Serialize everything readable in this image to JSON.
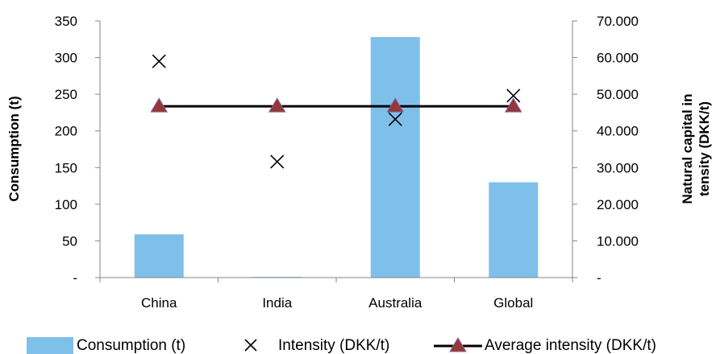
{
  "chart_data": {
    "type": "bar",
    "categories": [
      "China",
      "India",
      "Australia",
      "Global"
    ],
    "series": [
      {
        "name": "Consumption (t)",
        "type": "bar",
        "axis": "left",
        "color": "#7FC0EA",
        "values": [
          59,
          1,
          328,
          130
        ]
      },
      {
        "name": "Intensity (DKK/t)",
        "type": "scatter",
        "axis": "right",
        "marker": "x",
        "color": "#000000",
        "values": [
          59000,
          31600,
          43200,
          49600
        ]
      },
      {
        "name": "Average intensity (DKK/t)",
        "type": "line",
        "axis": "right",
        "marker": "triangle",
        "color": "#000000",
        "marker_color": "#953735",
        "values": [
          46700,
          46700,
          46700,
          46700
        ]
      }
    ],
    "left_axis": {
      "label": "Consumption (t)",
      "min": 0,
      "max": 350,
      "ticks": [
        0,
        50,
        100,
        150,
        200,
        250,
        300,
        350
      ],
      "tick_labels": [
        "-",
        "50",
        "100",
        "150",
        "200",
        "250",
        "300",
        "350"
      ]
    },
    "right_axis": {
      "label_lines": [
        "Natural capital in",
        "tensity (DKK/t)"
      ],
      "min": 0,
      "max": 70000,
      "ticks": [
        0,
        10000,
        20000,
        30000,
        40000,
        50000,
        60000,
        70000
      ],
      "tick_labels": [
        "-",
        "10.000",
        "20.000",
        "30.000",
        "40.000",
        "50.000",
        "60.000",
        "70.000"
      ]
    },
    "grid": false,
    "legend_position": "bottom"
  }
}
